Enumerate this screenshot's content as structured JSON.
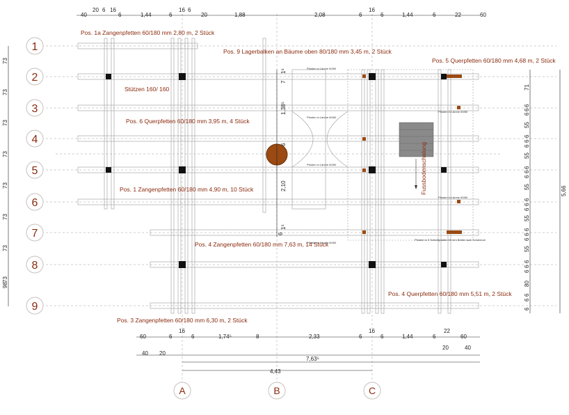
{
  "axes": {
    "rows": [
      "1",
      "2",
      "3",
      "4",
      "5",
      "6",
      "7",
      "8",
      "9"
    ],
    "columns": [
      "A",
      "B",
      "C"
    ]
  },
  "labels": {
    "pos1a": "Pos. 1a Zangenpfetten  60/180 mm 2,80 m, 2 Stück",
    "pos9": "Pos. 9 Lagerbalken an Bäume oben   80/180 mm 3,45 m, 2 Stück",
    "pos5": "Pos. 5 Querpfetten  60/180 mm 4,68 m, 2 Stück",
    "stuetzen": "Stützen 160/ 160",
    "pos6": "Pos. 6 Querpfetten  60/180 mm 3,95 m, 4 Stück",
    "pos1": "Pos. 1 Zangenpfetten  60/180 mm 4,90 m, 10 Stück",
    "pos4z": "Pos. 4 Zangenpfetten  60/180 mm 7,63 m, 14 Stück",
    "pos4q": "Pos. 4 Querpfetten  60/180 mm 5,51 m, 2 Stück",
    "pos3": "Pos. 3 Zangenpfetten  60/180 mm 6,30 m, 2 Stück",
    "fussboden": "Fussbodenschalung",
    "pfosten1": "Pfosten in Lärche 60/60",
    "pfosten2": "Pfosten in Lärche 60/60",
    "pfosten3": "Pfosten in Lärche 60/60",
    "pfosten4": "Pfosten in Lärche 60/60",
    "pfosten5": "Pfosten in Lärche 60/60",
    "pfosten6": "Pfosten in Lärche 60/60",
    "pfosten7": "Pfosten in 3 Schichtplatten 60 mm Breite nach Schablone"
  },
  "dims_top": [
    "40",
    "20",
    "6",
    "16",
    "6",
    "1,44",
    "6",
    "16",
    "6",
    "20",
    "1,88",
    "2,08",
    "6",
    "16",
    "6",
    "1,44",
    "6",
    "22",
    "60"
  ],
  "dims_bottom": [
    "60",
    "6",
    "16",
    "6",
    "1,74⁵",
    "8",
    "2,33",
    "6",
    "16",
    "6",
    "1,44",
    "6",
    "22",
    "60"
  ],
  "dims_bottom2": [
    "40",
    "20",
    "20",
    "40"
  ],
  "dims_total": [
    "4,43",
    "7,63⁵"
  ],
  "dims_left": [
    "73",
    "73",
    "73",
    "73",
    "73",
    "73",
    "73",
    "73",
    "98"
  ],
  "dims_right": [
    "71",
    "6",
    "6",
    "6",
    "55",
    "6",
    "6",
    "6",
    "55",
    "6",
    "6",
    "6",
    "55",
    "6",
    "6",
    "6",
    "55",
    "6",
    "6",
    "6",
    "55",
    "6",
    "6",
    "6",
    "80",
    "6",
    "6",
    "6"
  ],
  "dims_right_total": "5,66",
  "dims_mid": [
    "1⁵",
    "7",
    "1,38⁵",
    "6",
    "2,10",
    "6",
    "1⁵"
  ]
}
